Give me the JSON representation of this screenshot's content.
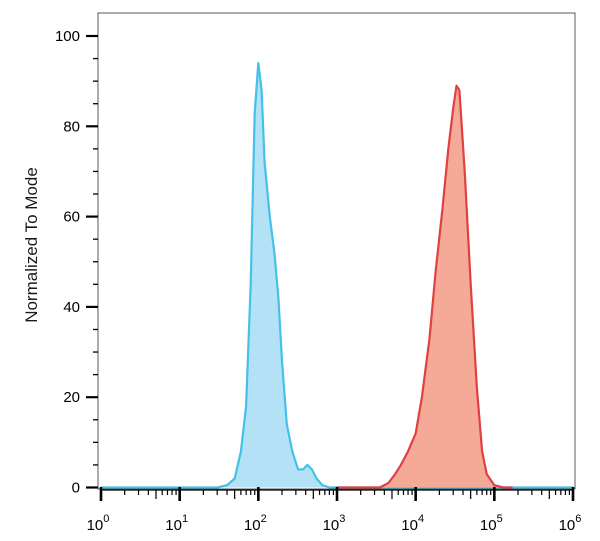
{
  "chart_data": {
    "type": "area",
    "title": "",
    "xlabel": "",
    "ylabel": "Normalized To Mode",
    "x_scale": "log",
    "xlim": [
      1,
      1000000
    ],
    "ylim": [
      0,
      100
    ],
    "grid": false,
    "legend": "none",
    "x_ticks": [
      {
        "base": "10",
        "exp": "0",
        "value": 1
      },
      {
        "base": "10",
        "exp": "1",
        "value": 10
      },
      {
        "base": "10",
        "exp": "2",
        "value": 100
      },
      {
        "base": "10",
        "exp": "3",
        "value": 1000
      },
      {
        "base": "10",
        "exp": "4",
        "value": 10000
      },
      {
        "base": "10",
        "exp": "5",
        "value": 100000
      },
      {
        "base": "10",
        "exp": "6",
        "value": 1000000
      }
    ],
    "y_ticks": [
      "0",
      "20",
      "40",
      "60",
      "80",
      "100"
    ],
    "series": [
      {
        "stroke": "#45c0e8",
        "fill": "#b3e2f6",
        "x": [
          1,
          30,
          40,
          50,
          60,
          70,
          80,
          90,
          100,
          110,
          120,
          140,
          160,
          180,
          200,
          230,
          270,
          320,
          370,
          420,
          480,
          550,
          650,
          800,
          1000,
          10000,
          1000000
        ],
        "y": [
          0,
          0,
          0.5,
          2,
          8,
          18,
          45,
          83,
          94,
          88,
          72,
          60,
          52,
          42,
          28,
          14,
          8,
          4,
          4,
          5,
          4,
          2,
          0.5,
          0,
          0,
          0,
          0
        ]
      },
      {
        "stroke": "#e04040",
        "fill": "#f5aa98",
        "x": [
          1000,
          2000,
          3000,
          3500,
          4500,
          5500,
          6500,
          8000,
          10000,
          12000,
          15000,
          18000,
          22000,
          26000,
          30000,
          33000,
          36000,
          42000,
          50000,
          60000,
          70000,
          80000,
          100000,
          130000,
          170000
        ],
        "y": [
          0,
          0,
          0,
          0,
          1,
          3,
          5,
          8,
          12,
          20,
          33,
          48,
          62,
          75,
          84,
          89,
          88,
          70,
          45,
          22,
          8,
          3,
          0.5,
          0,
          0
        ]
      }
    ]
  }
}
